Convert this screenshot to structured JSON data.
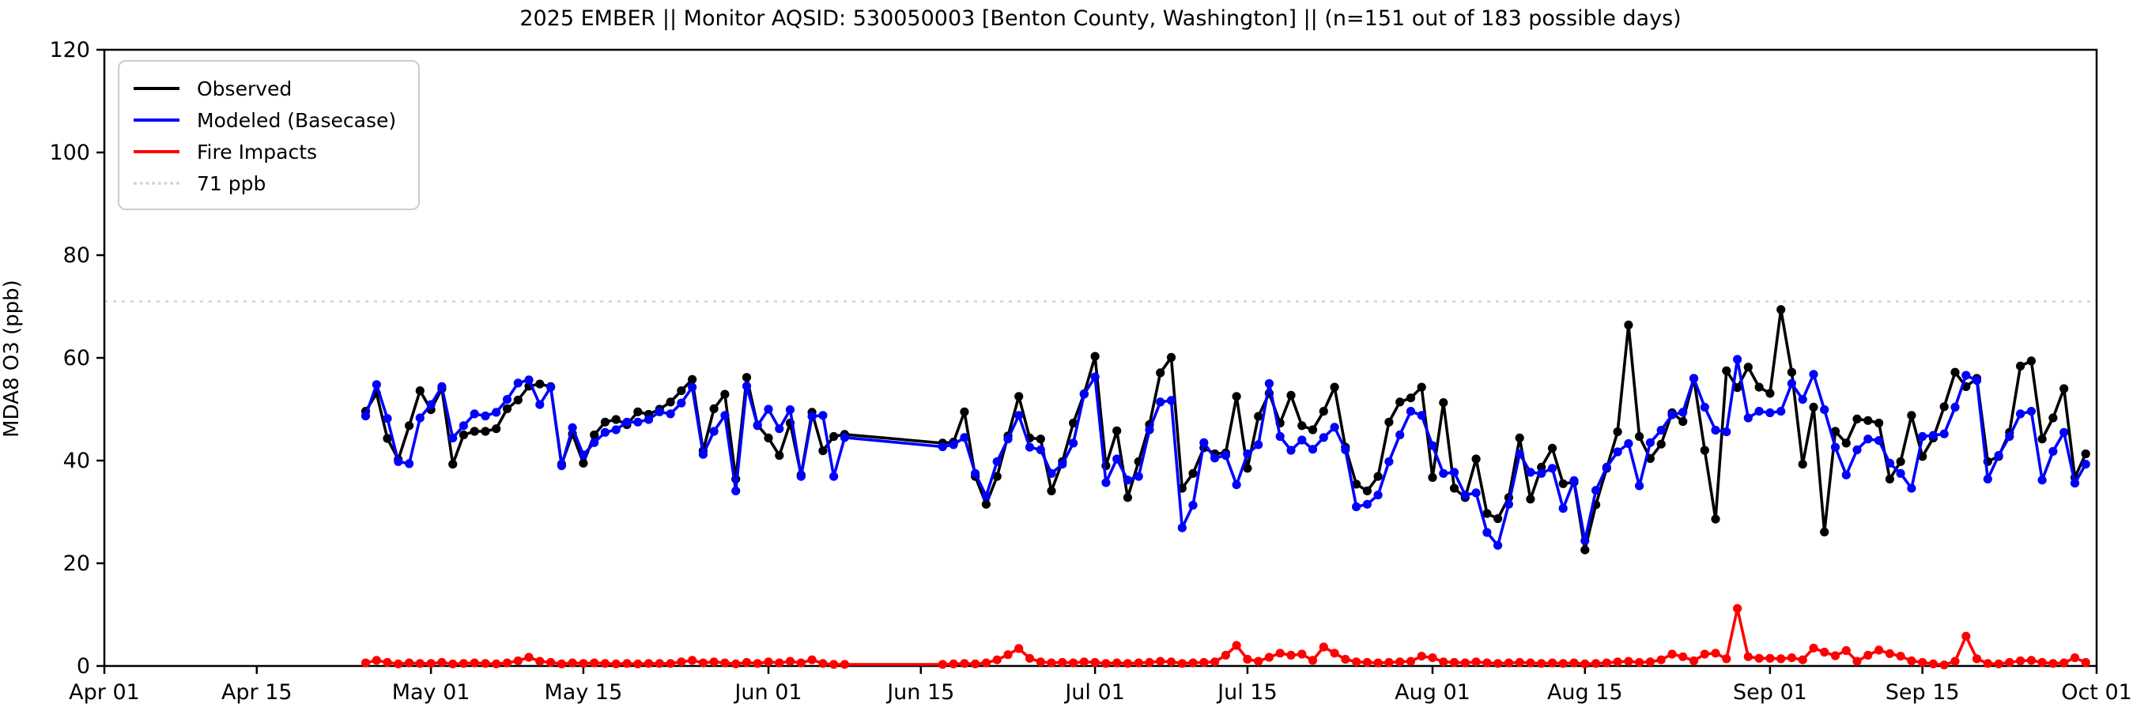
{
  "title": "2025 EMBER || Monitor AQSID: 530050003 [Benton County, Washington] || (n=151 out of 183 possible days)",
  "chart_data": {
    "type": "line",
    "title": "2025 EMBER || Monitor AQSID: 530050003 [Benton County, Washington] || (n=151 out of 183 possible days)",
    "xlabel": "",
    "ylabel": "MDA8 O3 (ppb)",
    "ylim": [
      0,
      120
    ],
    "yticks": [
      0,
      20,
      40,
      60,
      80,
      100,
      120
    ],
    "x_range_days": [
      0,
      183
    ],
    "xtick_days": [
      0,
      14,
      30,
      44,
      61,
      75,
      91,
      105,
      122,
      136,
      153,
      167,
      183
    ],
    "xtick_labels": [
      "Apr 01",
      "Apr 15",
      "May 01",
      "May 15",
      "Jun 01",
      "Jun 15",
      "Jul 01",
      "Jul 15",
      "Aug 01",
      "Aug 15",
      "Sep 01",
      "Sep 15",
      "Oct 01"
    ],
    "grid": false,
    "legend_position": "upper left",
    "legend": [
      {
        "label": "Observed",
        "color": "#000000",
        "style": "solid"
      },
      {
        "label": "Modeled (Basecase)",
        "color": "#0000ff",
        "style": "solid"
      },
      {
        "label": "Fire Impacts",
        "color": "#ff0000",
        "style": "solid"
      },
      {
        "label": "71 ppb",
        "color": "#d3d3d3",
        "style": "dotted"
      }
    ],
    "threshold": {
      "value": 71,
      "label": "71 ppb",
      "color": "#d3d3d3"
    },
    "data_day_ranges": [
      [
        24,
        68
      ],
      [
        77,
        182
      ]
    ],
    "data_start_date": "Apr 25",
    "data_gap": "Jun 09 - Jun 16",
    "data_end_date": "Sep 30",
    "n_days": 151,
    "series": [
      {
        "name": "Observed",
        "color": "#000000",
        "values": [
          49.6,
          53.1,
          44.3,
          40.2,
          46.8,
          53.6,
          49.9,
          54.0,
          39.3,
          45.0,
          45.7,
          45.7,
          46.2,
          50.1,
          51.8,
          54.5,
          54.9,
          54.4,
          39.3,
          45.2,
          39.5,
          45.0,
          47.5,
          48.0,
          47.0,
          49.5,
          49.0,
          50.0,
          51.4,
          53.6,
          55.8,
          41.9,
          50.1,
          52.9,
          36.4,
          56.2,
          46.9,
          44.4,
          41.0,
          47.3,
          37.2,
          49.4,
          41.9,
          44.7,
          45.1,
          43.4,
          43.6,
          49.5,
          36.9,
          31.5,
          36.9,
          44.8,
          52.5,
          44.4,
          44.2,
          34.1,
          39.8,
          47.3,
          53.0,
          60.3,
          39.0,
          45.8,
          32.8,
          39.8,
          47.0,
          57.1,
          60.1,
          34.6,
          37.5,
          42.5,
          41.3,
          41.5,
          52.5,
          38.5,
          48.6,
          53.1,
          47.3,
          52.7,
          46.8,
          46.0,
          49.6,
          54.3,
          42.6,
          35.4,
          34.1,
          36.9,
          47.5,
          51.4,
          52.2,
          54.3,
          36.7,
          51.3,
          34.6,
          32.8,
          40.3,
          29.7,
          28.7,
          32.8,
          44.4,
          32.5,
          38.7,
          42.4,
          35.5,
          35.8,
          22.6,
          31.4,
          38.5,
          45.6,
          66.4,
          44.7,
          40.4,
          43.2,
          49.3,
          47.6,
          56.0,
          42.0,
          28.6,
          57.5,
          54.2,
          58.2,
          54.3,
          53.1,
          69.4,
          57.2,
          39.3,
          50.4,
          26.1,
          45.7,
          43.4,
          48.1,
          47.8,
          47.3,
          36.4,
          39.8,
          48.8,
          40.8,
          44.4,
          50.5,
          57.2,
          54.4,
          56.0,
          39.8,
          40.8,
          45.5,
          58.4,
          59.4,
          44.2,
          48.3,
          54.0,
          36.7,
          41.3
        ]
      },
      {
        "name": "Modeled (Basecase)",
        "color": "#0000ff",
        "values": [
          48.7,
          54.8,
          48.2,
          39.8,
          39.4,
          48.3,
          50.9,
          54.4,
          44.4,
          46.8,
          49.1,
          48.7,
          49.4,
          51.9,
          55.1,
          55.7,
          50.9,
          54.3,
          39.0,
          46.4,
          41.1,
          43.5,
          45.5,
          46.0,
          47.5,
          47.5,
          48.0,
          49.5,
          49.1,
          51.2,
          54.3,
          41.2,
          45.7,
          48.8,
          34.1,
          54.5,
          46.8,
          50.0,
          46.2,
          49.9,
          36.9,
          48.6,
          48.8,
          36.9,
          44.5,
          42.7,
          43.1,
          44.5,
          37.5,
          33.1,
          39.8,
          44.2,
          48.8,
          42.6,
          42.1,
          37.5,
          39.3,
          43.4,
          52.9,
          56.3,
          35.7,
          40.3,
          36.2,
          36.9,
          46.0,
          51.4,
          51.7,
          26.9,
          31.3,
          43.5,
          40.5,
          41.0,
          35.3,
          41.3,
          43.1,
          55.0,
          44.7,
          42.0,
          44.0,
          42.2,
          44.5,
          46.5,
          42.1,
          31.0,
          31.5,
          33.3,
          39.8,
          45.0,
          49.6,
          48.8,
          42.9,
          37.5,
          37.7,
          33.3,
          33.7,
          26.0,
          23.5,
          31.5,
          41.3,
          37.7,
          37.5,
          38.5,
          30.7,
          36.1,
          24.4,
          34.2,
          38.7,
          41.7,
          43.3,
          35.1,
          43.5,
          45.9,
          48.9,
          49.4,
          56.0,
          50.4,
          45.9,
          45.6,
          59.7,
          48.3,
          49.6,
          49.3,
          49.6,
          55.0,
          51.9,
          56.8,
          49.9,
          42.6,
          37.2,
          42.1,
          44.2,
          43.9,
          39.5,
          37.5,
          34.6,
          44.7,
          44.9,
          45.2,
          50.4,
          56.6,
          55.6,
          36.4,
          41.0,
          44.7,
          49.1,
          49.6,
          36.2,
          41.8,
          45.5,
          35.6,
          39.3
        ]
      },
      {
        "name": "Fire Impacts",
        "color": "#ff0000",
        "values": [
          0.6,
          1.1,
          0.7,
          0.4,
          0.6,
          0.5,
          0.5,
          0.7,
          0.4,
          0.5,
          0.6,
          0.5,
          0.4,
          0.6,
          1.0,
          1.7,
          0.9,
          0.7,
          0.4,
          0.6,
          0.5,
          0.6,
          0.5,
          0.4,
          0.5,
          0.4,
          0.5,
          0.5,
          0.5,
          0.8,
          1.1,
          0.6,
          0.8,
          0.6,
          0.4,
          0.7,
          0.5,
          0.8,
          0.6,
          0.9,
          0.6,
          1.2,
          0.5,
          0.3,
          0.3,
          0.3,
          0.4,
          0.5,
          0.4,
          0.6,
          1.2,
          2.2,
          3.4,
          1.5,
          0.8,
          0.6,
          0.7,
          0.6,
          0.8,
          0.7,
          0.5,
          0.6,
          0.5,
          0.6,
          0.7,
          0.9,
          0.8,
          0.5,
          0.6,
          0.7,
          0.8,
          2.1,
          4.0,
          1.3,
          0.9,
          1.7,
          2.5,
          2.1,
          2.3,
          1.1,
          3.7,
          2.5,
          1.3,
          0.8,
          0.7,
          0.6,
          0.7,
          0.8,
          0.9,
          1.9,
          1.6,
          0.8,
          0.7,
          0.6,
          0.8,
          0.6,
          0.5,
          0.6,
          0.7,
          0.6,
          0.5,
          0.6,
          0.5,
          0.6,
          0.4,
          0.5,
          0.6,
          0.8,
          0.9,
          0.7,
          0.8,
          1.2,
          2.3,
          1.8,
          1.0,
          2.3,
          2.5,
          1.4,
          11.2,
          1.8,
          1.5,
          1.5,
          1.4,
          1.6,
          1.2,
          3.5,
          2.7,
          2.0,
          3.0,
          0.9,
          2.1,
          3.1,
          2.4,
          1.9,
          1.0,
          0.7,
          0.4,
          0.2,
          0.9,
          5.8,
          1.4,
          0.5,
          0.4,
          0.7,
          1.0,
          1.1,
          0.7,
          0.5,
          0.6,
          1.6,
          0.7
        ]
      }
    ]
  }
}
